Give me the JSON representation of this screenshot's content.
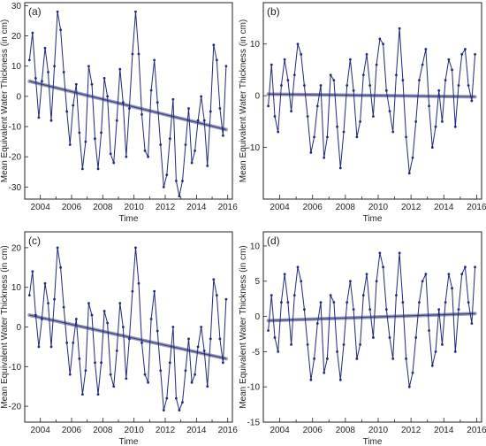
{
  "chart_data": [
    {
      "type": "line",
      "panel_label": "(a)",
      "xlabel": "Time",
      "ylabel": "Mean Equivalent Water Thickness (in cm)",
      "xlim": [
        2003,
        2016.3
      ],
      "ylim": [
        -34,
        31
      ],
      "xticks": [
        "2004",
        "2006",
        "2008",
        "2010",
        "2012",
        "2014",
        "2016"
      ],
      "yticks": [
        "-30",
        "-20",
        "-10",
        "0",
        "10",
        "20",
        "30"
      ],
      "colors": {
        "series": "#1f2a7a",
        "trend": "#3a3f8f"
      },
      "series": [
        {
          "x": [
            2003.3,
            2003.5,
            2003.7,
            2003.9,
            2004.1,
            2004.3,
            2004.5,
            2004.7,
            2004.9,
            2005.1,
            2005.3,
            2005.5,
            2005.7,
            2005.9,
            2006.1,
            2006.3,
            2006.5,
            2006.7,
            2006.9,
            2007.1,
            2007.3,
            2007.5,
            2007.7,
            2007.9,
            2008.1,
            2008.3,
            2008.5,
            2008.7,
            2008.9,
            2009.1,
            2009.3,
            2009.5,
            2009.7,
            2009.9,
            2010.1,
            2010.3,
            2010.5,
            2010.7,
            2010.9,
            2011.1,
            2011.3,
            2011.5,
            2011.7,
            2011.9,
            2012.1,
            2012.3,
            2012.5,
            2012.7,
            2012.9,
            2013.1,
            2013.3,
            2013.5,
            2013.7,
            2013.9,
            2014.1,
            2014.3,
            2014.5,
            2014.7,
            2014.9,
            2015.1,
            2015.3,
            2015.5,
            2015.7,
            2015.9
          ],
          "y": [
            12,
            21,
            6,
            -7,
            5,
            16,
            8,
            -8,
            10,
            28,
            22,
            8,
            -5,
            -16,
            -3,
            4,
            -12,
            -24,
            -15,
            10,
            4,
            -14,
            -24,
            -12,
            6,
            0,
            -19,
            -22,
            -8,
            9,
            -2,
            -20,
            -4,
            14,
            28,
            14,
            -6,
            -18,
            -20,
            2,
            12,
            -2,
            -16,
            -30,
            -26,
            -14,
            -1,
            -28,
            -33,
            -28,
            -16,
            -4,
            -22,
            -18,
            -8,
            0,
            -8,
            -23,
            -5,
            17,
            12,
            -4,
            -13,
            10
          ]
        }
      ],
      "trend": {
        "x": [
          2003.3,
          2015.9
        ],
        "y": [
          5,
          -11
        ]
      }
    },
    {
      "type": "line",
      "panel_label": "(b)",
      "xlabel": "Time",
      "ylabel": "Mean Equivalent Water Thickness (in cm)",
      "xlim": [
        2003,
        2016.3
      ],
      "ylim": [
        -20,
        18
      ],
      "xticks": [
        "2004",
        "2006",
        "2008",
        "2010",
        "2012",
        "2014",
        "2016"
      ],
      "yticks": [
        "-10",
        "0",
        "10"
      ],
      "colors": {
        "series": "#1f2a7a",
        "trend": "#3a3f8f"
      },
      "series": [
        {
          "x": [
            2003.3,
            2003.5,
            2003.7,
            2003.9,
            2004.1,
            2004.3,
            2004.5,
            2004.7,
            2004.9,
            2005.1,
            2005.3,
            2005.5,
            2005.7,
            2005.9,
            2006.1,
            2006.3,
            2006.5,
            2006.7,
            2006.9,
            2007.1,
            2007.3,
            2007.5,
            2007.7,
            2007.9,
            2008.1,
            2008.3,
            2008.5,
            2008.7,
            2008.9,
            2009.1,
            2009.3,
            2009.5,
            2009.7,
            2009.9,
            2010.1,
            2010.3,
            2010.5,
            2010.7,
            2010.9,
            2011.1,
            2011.3,
            2011.5,
            2011.7,
            2011.9,
            2012.1,
            2012.3,
            2012.5,
            2012.7,
            2012.9,
            2013.1,
            2013.3,
            2013.5,
            2013.7,
            2013.9,
            2014.1,
            2014.3,
            2014.5,
            2014.7,
            2014.9,
            2015.1,
            2015.3,
            2015.5,
            2015.7,
            2015.9
          ],
          "y": [
            -2,
            6,
            -4,
            -7,
            2,
            7,
            3,
            -3,
            4,
            10,
            8,
            2,
            -4,
            -11,
            -8,
            -2,
            2,
            -12,
            -8,
            4,
            3,
            -6,
            -14,
            -7,
            2,
            7,
            1,
            -8,
            -5,
            4,
            8,
            2,
            -4,
            6,
            11,
            10,
            1,
            -3,
            -7,
            4,
            13,
            3,
            -8,
            -15,
            -12,
            -5,
            3,
            6,
            9,
            -2,
            -10,
            -6,
            1,
            -5,
            3,
            7,
            5,
            -6,
            2,
            8,
            9,
            2,
            -1,
            8
          ]
        }
      ],
      "trend": {
        "x": [
          2003.3,
          2015.9
        ],
        "y": [
          0.3,
          -0.2
        ]
      }
    },
    {
      "type": "line",
      "panel_label": "(c)",
      "xlabel": "Time",
      "ylabel": "Mean Equivalent Water Thickness (in cm)",
      "xlim": [
        2003,
        2016.3
      ],
      "ylim": [
        -24,
        24
      ],
      "xticks": [
        "2004",
        "2006",
        "2008",
        "2010",
        "2012",
        "2014",
        "2016"
      ],
      "yticks": [
        "-20",
        "-10",
        "0",
        "10",
        "20"
      ],
      "colors": {
        "series": "#1f2a7a",
        "trend": "#3a3f8f"
      },
      "series": [
        {
          "x": [
            2003.3,
            2003.5,
            2003.7,
            2003.9,
            2004.1,
            2004.3,
            2004.5,
            2004.7,
            2004.9,
            2005.1,
            2005.3,
            2005.5,
            2005.7,
            2005.9,
            2006.1,
            2006.3,
            2006.5,
            2006.7,
            2006.9,
            2007.1,
            2007.3,
            2007.5,
            2007.7,
            2007.9,
            2008.1,
            2008.3,
            2008.5,
            2008.7,
            2008.9,
            2009.1,
            2009.3,
            2009.5,
            2009.7,
            2009.9,
            2010.1,
            2010.3,
            2010.5,
            2010.7,
            2010.9,
            2011.1,
            2011.3,
            2011.5,
            2011.7,
            2011.9,
            2012.1,
            2012.3,
            2012.5,
            2012.7,
            2012.9,
            2013.1,
            2013.3,
            2013.5,
            2013.7,
            2013.9,
            2014.1,
            2014.3,
            2014.5,
            2014.7,
            2014.9,
            2015.1,
            2015.3,
            2015.5,
            2015.7,
            2015.9
          ],
          "y": [
            8,
            14,
            3,
            -5,
            2,
            11,
            6,
            -5,
            7,
            20,
            15,
            5,
            -4,
            -12,
            -4,
            2,
            -8,
            -17,
            -11,
            6,
            3,
            -9,
            -17,
            -9,
            4,
            1,
            -12,
            -15,
            -6,
            6,
            0,
            -13,
            -3,
            9,
            20,
            11,
            -4,
            -12,
            -14,
            2,
            9,
            -1,
            -11,
            -21,
            -18,
            -9,
            0,
            -18,
            -21,
            -19,
            -11,
            -3,
            -14,
            -12,
            -5,
            0,
            -6,
            -15,
            -3,
            12,
            8,
            -3,
            -9,
            7
          ]
        }
      ],
      "trend": {
        "x": [
          2003.3,
          2015.9
        ],
        "y": [
          3,
          -8
        ]
      }
    },
    {
      "type": "line",
      "panel_label": "(d)",
      "xlabel": "Time",
      "ylabel": "Mean Equivalent Water Thickness (in cm)",
      "xlim": [
        2003,
        2016.3
      ],
      "ylim": [
        -15,
        12
      ],
      "xticks": [
        "2004",
        "2006",
        "2008",
        "2010",
        "2012",
        "2014",
        "2016"
      ],
      "yticks": [
        "-15",
        "-10",
        "-5",
        "0",
        "5",
        "10"
      ],
      "colors": {
        "series": "#1f2a7a",
        "trend": "#3a3f8f"
      },
      "series": [
        {
          "x": [
            2003.3,
            2003.5,
            2003.7,
            2003.9,
            2004.1,
            2004.3,
            2004.5,
            2004.7,
            2004.9,
            2005.1,
            2005.3,
            2005.5,
            2005.7,
            2005.9,
            2006.1,
            2006.3,
            2006.5,
            2006.7,
            2006.9,
            2007.1,
            2007.3,
            2007.5,
            2007.7,
            2007.9,
            2008.1,
            2008.3,
            2008.5,
            2008.7,
            2008.9,
            2009.1,
            2009.3,
            2009.5,
            2009.7,
            2009.9,
            2010.1,
            2010.3,
            2010.5,
            2010.7,
            2010.9,
            2011.1,
            2011.3,
            2011.5,
            2011.7,
            2011.9,
            2012.1,
            2012.3,
            2012.5,
            2012.7,
            2012.9,
            2013.1,
            2013.3,
            2013.5,
            2013.7,
            2013.9,
            2014.1,
            2014.3,
            2014.5,
            2014.7,
            2014.9,
            2015.1,
            2015.3,
            2015.5,
            2015.7,
            2015.9
          ],
          "y": [
            -2,
            3,
            -3,
            -5,
            2,
            6,
            2,
            -4,
            3,
            7,
            5,
            1,
            -4,
            -9,
            -6,
            -1,
            2,
            -8,
            -6,
            3,
            2,
            -5,
            -9,
            -4,
            2,
            5,
            1,
            -6,
            -4,
            3,
            6,
            1,
            -3,
            5,
            9,
            7,
            1,
            -3,
            -6,
            3,
            9,
            2,
            -6,
            -10,
            -8,
            -3,
            2,
            5,
            6,
            -2,
            -7,
            -5,
            1,
            -4,
            2,
            6,
            4,
            -5,
            1,
            6,
            7,
            2,
            -1,
            7
          ]
        }
      ],
      "trend": {
        "x": [
          2003.3,
          2015.9
        ],
        "y": [
          -0.6,
          0.4
        ]
      }
    }
  ]
}
